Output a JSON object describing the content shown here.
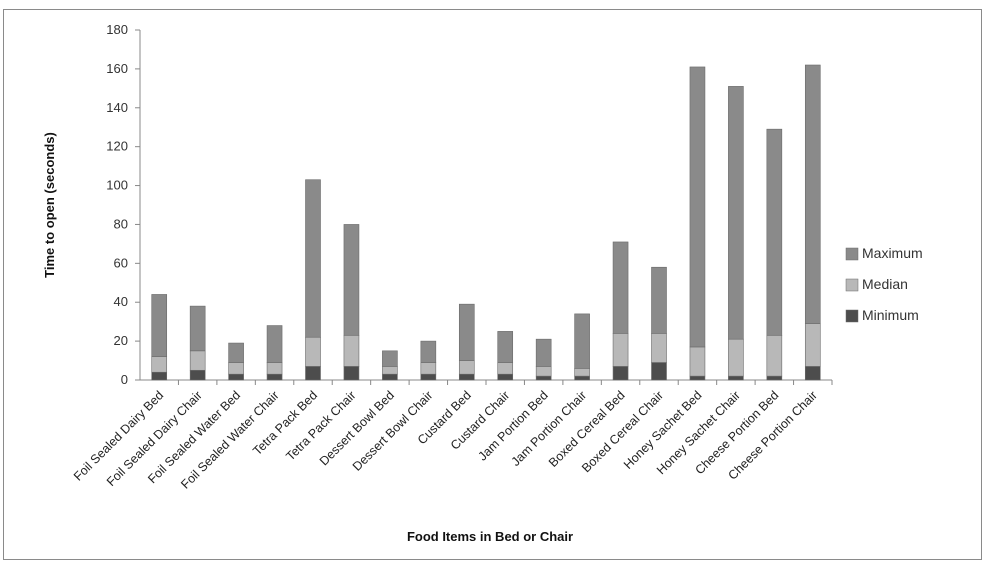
{
  "chart_data": {
    "type": "bar",
    "stacked": true,
    "xlabel": "Food Items  in Bed or Chair",
    "ylabel": "Time to open (seconds)",
    "ylim": [
      0,
      180
    ],
    "yticks": [
      0,
      20,
      40,
      60,
      80,
      100,
      120,
      140,
      160,
      180
    ],
    "grid": false,
    "legend_position": "right",
    "categories": [
      "Foil Sealed Dairy Bed",
      "Foil Sealed Dairy Chair",
      "Foil Sealed Water Bed",
      "Foil Sealed Water Chair",
      "Tetra Pack Bed",
      "Tetra Pack Chair",
      "Dessert Bowl Bed",
      "Dessert Bowl Chair",
      "Custard Bed",
      "Custard Chair",
      "Jam Portion Bed",
      "Jam Portion Chair",
      "Boxed Cereal Bed",
      "Boxed Cereal Chair",
      "Honey Sachet Bed",
      "Honey Sachet Chair",
      "Cheese Portion Bed",
      "Cheese Portion Chair"
    ],
    "series": [
      {
        "name": "Minimum",
        "color": "#4d4d4d",
        "values": [
          4,
          5,
          3,
          3,
          7,
          7,
          3,
          3,
          3,
          3,
          2,
          2,
          7,
          9,
          2,
          2,
          2,
          7
        ]
      },
      {
        "name": "Median",
        "color": "#b8b8b8",
        "values": [
          8,
          10,
          6,
          6,
          15,
          16,
          4,
          6,
          7,
          6,
          5,
          4,
          17,
          15,
          15,
          19,
          21,
          22
        ]
      },
      {
        "name": "Maximum",
        "color": "#8a8a8a",
        "values": [
          32,
          23,
          10,
          19,
          81,
          57,
          8,
          11,
          29,
          16,
          14,
          28,
          47,
          34,
          144,
          130,
          106,
          133
        ]
      }
    ],
    "legend_order": [
      "Maximum",
      "Median",
      "Minimum"
    ]
  }
}
